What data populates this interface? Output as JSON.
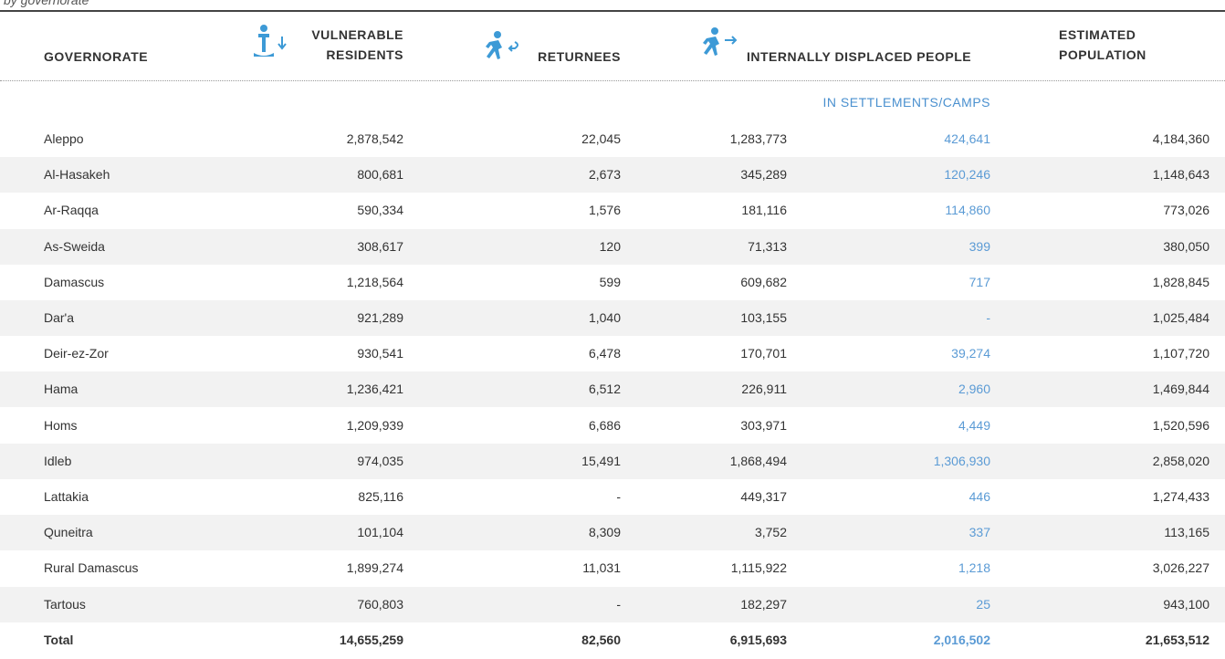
{
  "subtitle": "by governorate",
  "header": {
    "governorate": "GOVERNORATE",
    "vulnerable": [
      "VULNERABLE",
      "RESIDENTS"
    ],
    "returnees": "RETURNEES",
    "idp": "INTERNALLY DISPLACED PEOPLE",
    "population": [
      "ESTIMATED",
      "POPULATION"
    ],
    "camps": "IN SETTLEMENTS/CAMPS"
  },
  "table": {
    "rows": [
      [
        "Aleppo",
        "2,878,542",
        "22,045",
        "1,283,773",
        "424,641",
        "4,184,360"
      ],
      [
        "Al-Hasakeh",
        "800,681",
        "2,673",
        "345,289",
        "120,246",
        "1,148,643"
      ],
      [
        "Ar-Raqqa",
        "590,334",
        "1,576",
        "181,116",
        "114,860",
        "773,026"
      ],
      [
        "As-Sweida",
        "308,617",
        "120",
        "71,313",
        "399",
        "380,050"
      ],
      [
        "Damascus",
        "1,218,564",
        "599",
        "609,682",
        "717",
        "1,828,845"
      ],
      [
        "Dar'a",
        "921,289",
        "1,040",
        "103,155",
        "-",
        "1,025,484"
      ],
      [
        "Deir-ez-Zor",
        "930,541",
        "6,478",
        "170,701",
        "39,274",
        "1,107,720"
      ],
      [
        "Hama",
        "1,236,421",
        "6,512",
        "226,911",
        "2,960",
        "1,469,844"
      ],
      [
        "Homs",
        "1,209,939",
        "6,686",
        "303,971",
        "4,449",
        "1,520,596"
      ],
      [
        "Idleb",
        "974,035",
        "15,491",
        "1,868,494",
        "1,306,930",
        "2,858,020"
      ],
      [
        "Lattakia",
        "825,116",
        "-",
        "449,317",
        "446",
        "1,274,433"
      ],
      [
        "Quneitra",
        "101,104",
        "8,309",
        "3,752",
        "337",
        "113,165"
      ],
      [
        "Rural Damascus",
        "1,899,274",
        "11,031",
        "1,115,922",
        "1,218",
        "3,026,227"
      ],
      [
        "Tartous",
        "760,803",
        "-",
        "182,297",
        "25",
        "943,100"
      ]
    ],
    "total": [
      "Total",
      "14,655,259",
      "82,560",
      "6,915,693",
      "2,016,502",
      "21,653,512"
    ]
  }
}
